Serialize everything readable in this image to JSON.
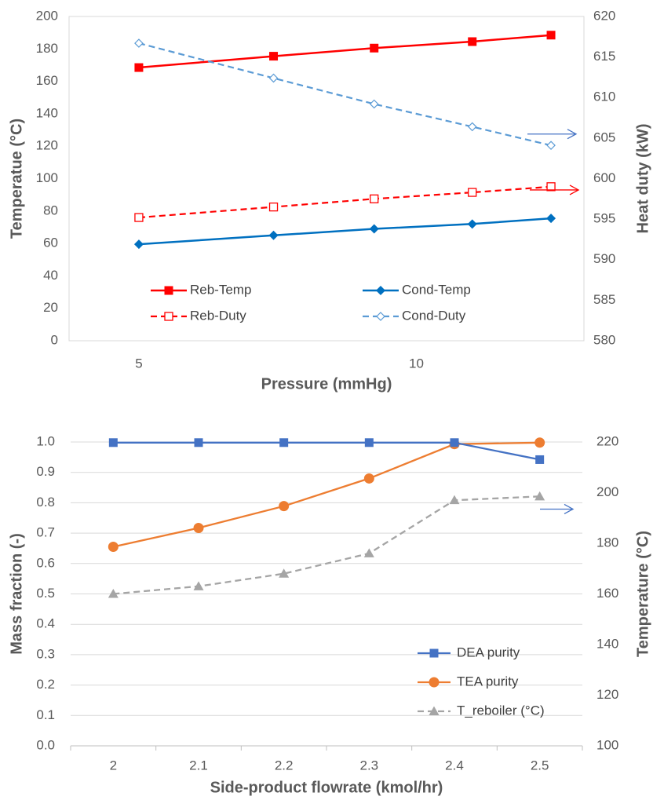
{
  "chart_data": [
    {
      "type": "line",
      "title": "",
      "xlabel": "Pressure (mmHg)",
      "ylabel": "Temperatue (°C)",
      "y2label": "Heat duty (kW)",
      "xscale": "log",
      "ylim": [
        0,
        200
      ],
      "y2lim": [
        580,
        620
      ],
      "x_tick_labels": [
        "5",
        "10"
      ],
      "y_tick_labels": [
        "0",
        "20",
        "40",
        "60",
        "80",
        "100",
        "120",
        "140",
        "160",
        "180",
        "200"
      ],
      "y2_tick_labels": [
        "580",
        "585",
        "590",
        "595",
        "600",
        "605",
        "610",
        "615",
        "620"
      ],
      "grid": false,
      "legend_position": "bottom-center, two columns",
      "x": [
        5,
        7,
        9,
        11.5,
        14
      ],
      "series": [
        {
          "name": "Reb-Temp",
          "axis": "left",
          "values": [
            168.5,
            175.5,
            180.5,
            184.5,
            188.5
          ],
          "color": "#ff0000",
          "marker": "filled-square",
          "dash": "solid"
        },
        {
          "name": "Cond-Temp",
          "axis": "left",
          "values": [
            59.5,
            65,
            69,
            72,
            75.5
          ],
          "color": "#0070c0",
          "marker": "filled-diamond",
          "dash": "solid"
        },
        {
          "name": "Reb-Duty",
          "axis": "right",
          "values": [
            595.2,
            596.5,
            597.5,
            598.3,
            599
          ],
          "color": "#ff0000",
          "marker": "hollow-square",
          "dash": "dashed"
        },
        {
          "name": "Cond-Duty",
          "axis": "right",
          "values": [
            616.7,
            612.4,
            609.2,
            606.4,
            604.1
          ],
          "color": "#5b9bd5",
          "marker": "hollow-diamond",
          "dash": "dashed"
        }
      ],
      "annotations": [
        {
          "kind": "arrow-right",
          "points_to": "right-axis",
          "color": "#4472c4"
        },
        {
          "kind": "arrow-right",
          "points_to": "right-axis",
          "color": "#ff0000"
        }
      ]
    },
    {
      "type": "line",
      "title": "",
      "xlabel": "Side-product flowrate (kmol/hr)",
      "ylabel": "Mass fraction (-)",
      "y2label": "Temperature (°C)",
      "categories": [
        "2",
        "2.1",
        "2.2",
        "2.3",
        "2.4",
        "2.5"
      ],
      "ylim": [
        0,
        1
      ],
      "y2lim": [
        100,
        220
      ],
      "y_tick_labels": [
        "0.0",
        "0.1",
        "0.2",
        "0.3",
        "0.4",
        "0.5",
        "0.6",
        "0.7",
        "0.8",
        "0.9",
        "1.0"
      ],
      "y2_tick_labels": [
        "100",
        "120",
        "140",
        "160",
        "180",
        "200",
        "220"
      ],
      "grid": true,
      "legend_position": "bottom-right",
      "series": [
        {
          "name": "DEA purity",
          "axis": "left",
          "values": [
            0.998,
            0.998,
            0.998,
            0.998,
            0.998,
            0.942
          ],
          "color": "#4472c4",
          "marker": "square",
          "dash": "solid"
        },
        {
          "name": "TEA purity",
          "axis": "left",
          "values": [
            0.655,
            0.717,
            0.789,
            0.88,
            0.993,
            0.998
          ],
          "color": "#ed7d31",
          "marker": "circle",
          "dash": "solid"
        },
        {
          "name": "T_reboiler (°C)",
          "axis": "right",
          "values": [
            160,
            163,
            168,
            176,
            197,
            198.5
          ],
          "color": "#a5a5a5",
          "marker": "triangle",
          "dash": "dashed"
        }
      ],
      "annotations": [
        {
          "kind": "arrow-right",
          "points_to": "right-axis",
          "color": "#4472c4"
        }
      ]
    }
  ]
}
